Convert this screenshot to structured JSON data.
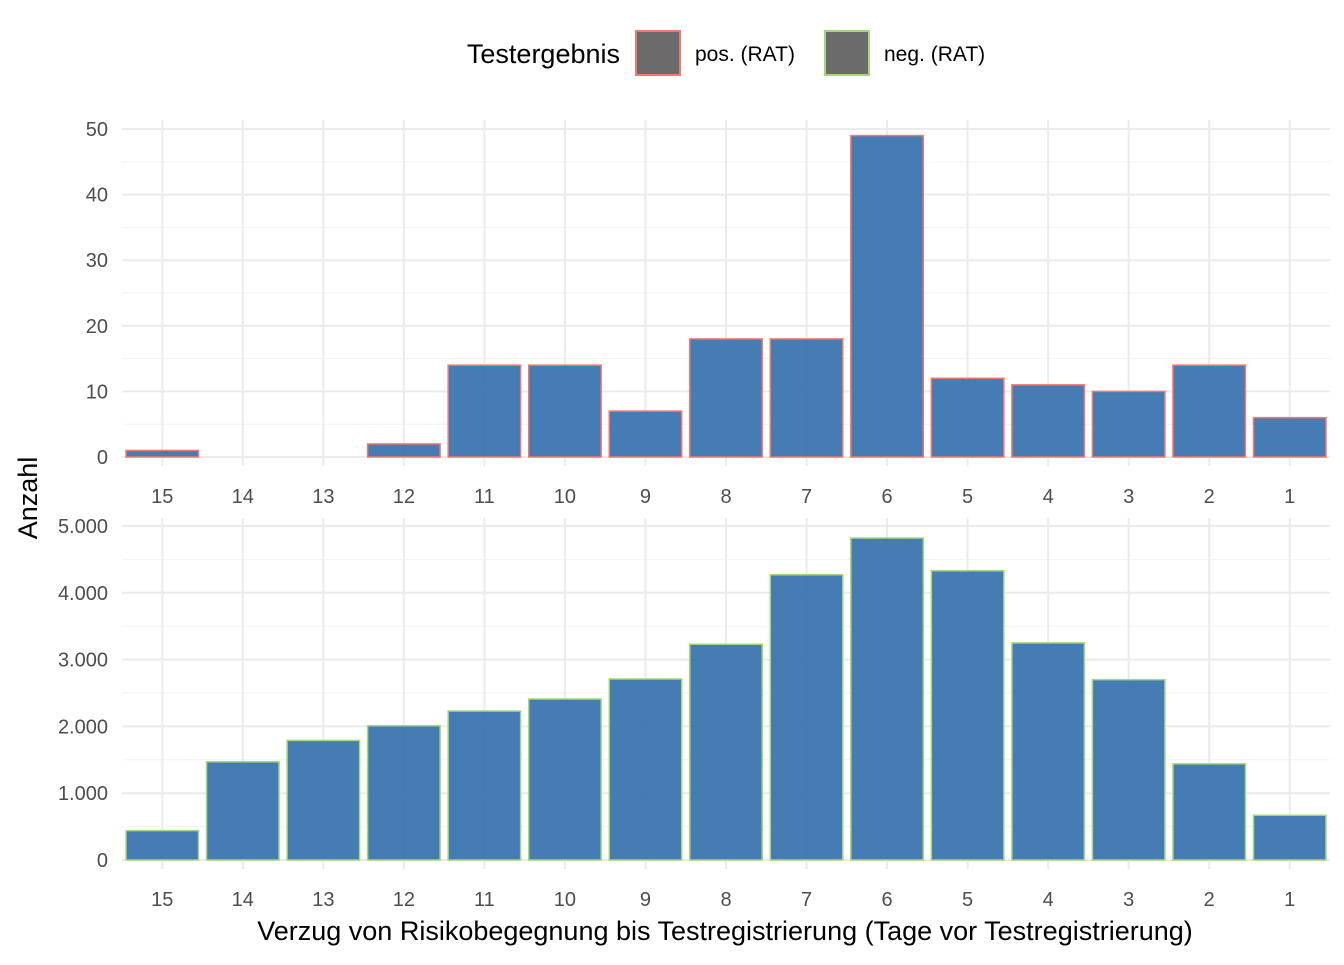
{
  "legend": {
    "title": "Testergebnis",
    "items": [
      {
        "label": "pos. (RAT)",
        "outline": "#f8766d"
      },
      {
        "label": "neg. (RAT)",
        "outline": "#a3d977"
      }
    ],
    "swatch_fill": "#6b6b6b",
    "placement": "top-center"
  },
  "colors": {
    "bar_fill": "#3b75af",
    "grid": "#ebebeb",
    "tick_text": "#4d4d4d"
  },
  "chart_data": [
    {
      "type": "bar",
      "series": [
        {
          "name": "pos. (RAT)",
          "values": [
            1,
            0,
            0,
            2,
            14,
            14,
            7,
            18,
            18,
            49,
            12,
            11,
            10,
            14,
            6
          ]
        }
      ],
      "categories": [
        "15",
        "14",
        "13",
        "12",
        "11",
        "10",
        "9",
        "8",
        "7",
        "6",
        "5",
        "4",
        "3",
        "2",
        "1"
      ],
      "ylim": [
        0,
        50
      ],
      "yticks": [
        0,
        10,
        20,
        30,
        40,
        50
      ],
      "ytick_labels": [
        "0",
        "10",
        "20",
        "30",
        "40",
        "50"
      ],
      "grid": true
    },
    {
      "type": "bar",
      "series": [
        {
          "name": "neg. (RAT)",
          "values": [
            440,
            1470,
            1790,
            2010,
            2230,
            2410,
            2710,
            3230,
            4270,
            4820,
            4330,
            3250,
            2700,
            1440,
            670
          ]
        }
      ],
      "categories": [
        "15",
        "14",
        "13",
        "12",
        "11",
        "10",
        "9",
        "8",
        "7",
        "6",
        "5",
        "4",
        "3",
        "2",
        "1"
      ],
      "ylim": [
        0,
        5000
      ],
      "yticks": [
        0,
        1000,
        2000,
        3000,
        4000,
        5000
      ],
      "ytick_labels": [
        "0",
        "1.000",
        "2.000",
        "3.000",
        "4.000",
        "5.000"
      ],
      "grid": true
    }
  ],
  "axes": {
    "ylabel": "Anzahl",
    "xlabel": "Verzug von Risikobegegnung bis Testregistrierung (Tage vor Testregistrierung)"
  }
}
